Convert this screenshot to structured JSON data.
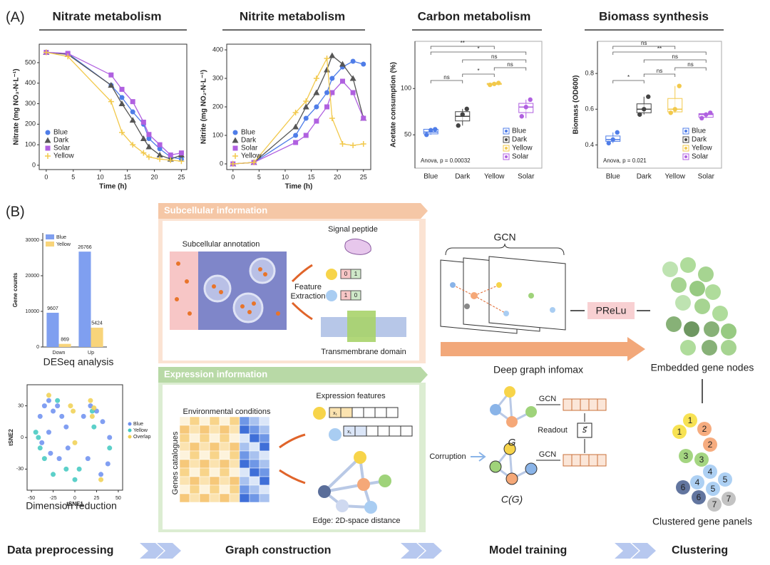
{
  "chart_data": [
    {
      "type": "line",
      "title": "Nitrate metabolism",
      "xlabel": "Time (h)",
      "ylabel": "Nitrate (mg NO₃-N·L⁻¹)",
      "x": [
        0,
        4,
        12,
        14,
        16,
        18,
        19,
        21,
        23,
        25
      ],
      "xlim": [
        -1.3,
        26
      ],
      "xticks": [
        0,
        5,
        10,
        15,
        20,
        25
      ],
      "ylim": [
        -21,
        590
      ],
      "yticks": [
        0,
        100,
        200,
        300,
        400,
        500
      ],
      "series": [
        {
          "name": "Blue",
          "color": "#4f7de8",
          "marker": "circle",
          "values": [
            550,
            545,
            390,
            330,
            260,
            200,
            130,
            80,
            40,
            30
          ]
        },
        {
          "name": "Dark",
          "color": "#555555",
          "marker": "triangle",
          "values": [
            550,
            540,
            390,
            300,
            220,
            130,
            90,
            50,
            30,
            50
          ]
        },
        {
          "name": "Solar",
          "color": "#b060e0",
          "marker": "square",
          "values": [
            550,
            545,
            440,
            370,
            310,
            210,
            150,
            100,
            50,
            60
          ]
        },
        {
          "name": "Yellow",
          "color": "#f2c94c",
          "marker": "cross",
          "values": [
            550,
            530,
            310,
            160,
            100,
            60,
            40,
            30,
            25,
            20
          ]
        }
      ]
    },
    {
      "type": "line",
      "title": "Nitrite metabolism",
      "xlabel": "Time (h)",
      "ylabel": "Nitrite (mg NO₂-N·L⁻¹)",
      "x": [
        0,
        4,
        12,
        14,
        16,
        18,
        19,
        21,
        23,
        25
      ],
      "xlim": [
        -1.2,
        26.4
      ],
      "xticks": [
        0,
        5,
        10,
        15,
        20,
        25
      ],
      "ylim": [
        -20,
        420
      ],
      "yticks": [
        0,
        100,
        200,
        300,
        400
      ],
      "series": [
        {
          "name": "Blue",
          "color": "#4f7de8",
          "marker": "circle",
          "values": [
            0,
            5,
            100,
            160,
            200,
            250,
            300,
            340,
            360,
            350
          ]
        },
        {
          "name": "Dark",
          "color": "#555555",
          "marker": "triangle",
          "values": [
            0,
            5,
            130,
            200,
            250,
            330,
            380,
            350,
            300,
            160
          ]
        },
        {
          "name": "Solar",
          "color": "#b060e0",
          "marker": "square",
          "values": [
            0,
            5,
            75,
            100,
            150,
            200,
            250,
            290,
            250,
            160
          ]
        },
        {
          "name": "Yellow",
          "color": "#f2c94c",
          "marker": "cross",
          "values": [
            0,
            5,
            180,
            220,
            300,
            370,
            160,
            70,
            65,
            70
          ]
        }
      ]
    },
    {
      "type": "box",
      "title": "Carbon metabolism",
      "ylabel": "Acetate consumption (%)",
      "categories": [
        "Blue",
        "Dark",
        "Yellow",
        "Solar"
      ],
      "colors": [
        "#4f7de8",
        "#444444",
        "#f2c94c",
        "#b060e0"
      ],
      "ylim": [
        14,
        151
      ],
      "yticks": [
        50,
        100
      ],
      "boxes": [
        {
          "min": 50,
          "q1": 51,
          "median": 53,
          "q3": 56,
          "max": 57
        },
        {
          "min": 60,
          "q1": 65,
          "median": 70,
          "q3": 75,
          "max": 78
        },
        {
          "min": 104,
          "q1": 104.5,
          "median": 105,
          "q3": 105.5,
          "max": 106
        },
        {
          "min": 68,
          "q1": 74,
          "median": 80,
          "q3": 84,
          "max": 88
        }
      ],
      "points": [
        [
          50,
          55,
          56
        ],
        [
          60,
          72,
          78
        ],
        [
          104,
          105,
          106
        ],
        [
          70,
          80,
          88
        ]
      ],
      "annotation": "Anova, p = 0.00032",
      "significance": [
        "**",
        "*",
        "ns",
        "ns",
        "*",
        "ns"
      ]
    },
    {
      "type": "box",
      "title": "Biomass synthesis",
      "ylabel": "Biomass (OD600)",
      "categories": [
        "Blue",
        "Dark",
        "Yellow",
        "Solar"
      ],
      "colors": [
        "#4f7de8",
        "#444444",
        "#f2c94c",
        "#b060e0"
      ],
      "ylim": [
        0.27,
        0.98
      ],
      "yticks": [
        0.4,
        0.6,
        0.8
      ],
      "boxes": [
        {
          "min": 0.41,
          "q1": 0.42,
          "median": 0.43,
          "q3": 0.45,
          "max": 0.47
        },
        {
          "min": 0.57,
          "q1": 0.58,
          "median": 0.6,
          "q3": 0.63,
          "max": 0.67
        },
        {
          "min": 0.58,
          "q1": 0.585,
          "median": 0.6,
          "q3": 0.66,
          "max": 0.73
        },
        {
          "min": 0.55,
          "q1": 0.555,
          "median": 0.57,
          "q3": 0.575,
          "max": 0.58
        }
      ],
      "points": [
        [
          0.41,
          0.43,
          0.47
        ],
        [
          0.57,
          0.6,
          0.67
        ],
        [
          0.58,
          0.6,
          0.73
        ],
        [
          0.55,
          0.57,
          0.58
        ]
      ],
      "annotation": "Anova, p = 0.021",
      "significance": [
        "ns",
        "**",
        "ns",
        "ns",
        "ns",
        "*"
      ]
    },
    {
      "type": "bar",
      "title": "DESeq analysis",
      "ylabel": "Gene counts",
      "categories": [
        "Down",
        "Up"
      ],
      "ylim": [
        0,
        32000
      ],
      "yticks": [
        0,
        10000,
        20000,
        30000
      ],
      "series": [
        {
          "name": "Blue",
          "color": "#7f9ff0",
          "values": [
            9607,
            26766
          ]
        },
        {
          "name": "Yellow",
          "color": "#f8d47a",
          "values": [
            869,
            5424
          ]
        }
      ]
    },
    {
      "type": "scatter",
      "title": "Dimension reduction",
      "xlabel": "tSNE1",
      "ylabel": "tSNE2",
      "xlim": [
        -55,
        55
      ],
      "xticks": [
        -50,
        -25,
        0,
        25,
        50
      ],
      "ylim": [
        -50,
        50
      ],
      "yticks": [
        -30,
        0,
        30
      ],
      "series": [
        {
          "name": "Blue",
          "color": "#6b8ef0",
          "x": [
            -40,
            -35,
            -30,
            -25,
            -20,
            -15,
            -10,
            -38,
            -28,
            -18,
            -8,
            -30,
            10,
            18,
            25,
            32,
            40,
            15,
            30,
            38
          ],
          "y": [
            20,
            30,
            35,
            25,
            30,
            20,
            10,
            -5,
            -15,
            -20,
            -10,
            5,
            20,
            30,
            25,
            15,
            0,
            -20,
            -35,
            -25
          ]
        },
        {
          "name": "Yellow",
          "color": "#40c8c0",
          "x": [
            -45,
            -42,
            -40,
            -35,
            -20,
            -10,
            0,
            20,
            22,
            40,
            5,
            -25
          ],
          "y": [
            5,
            0,
            -10,
            -20,
            35,
            -30,
            -40,
            25,
            10,
            -10,
            -30,
            -35
          ]
        },
        {
          "name": "Overlap",
          "color": "#f0d050",
          "x": [
            -5,
            -2,
            18,
            20,
            22,
            -30,
            30,
            0
          ],
          "y": [
            30,
            25,
            35,
            20,
            28,
            40,
            -40,
            -5
          ]
        }
      ]
    }
  ],
  "panels": {
    "a": "(A)",
    "b": "(B)"
  },
  "subcellular": {
    "header": "Subcellular information",
    "annotation": "Subcellular annotation",
    "signal_peptide": "Signal peptide",
    "feature_extraction": [
      "Feature",
      "Extraction"
    ],
    "bits": [
      "0",
      "1",
      "1",
      "0"
    ],
    "transmembrane": "Transmembrane domain"
  },
  "expression": {
    "header": "Expression information",
    "conditions": "Environmental conditions",
    "genes": "Genes catalogues",
    "features": "Expression features",
    "feature_cells": [
      "x₁",
      "x₁"
    ],
    "edge": "Edge: 2D-space distance"
  },
  "model": {
    "gcn": "GCN",
    "prelu": "PReLu",
    "dgi": "Deep graph infomax",
    "graph": "G",
    "corrupted": "C(G)",
    "gcn_top": "GCN",
    "gcn_bottom": "GCN",
    "readout": "Readout",
    "corruption": "Corruption",
    "summary": "s⃗"
  },
  "clustering": {
    "embedded": "Embedded gene nodes",
    "clustered": "Clustered gene panels",
    "cluster_labels": [
      "1",
      "1",
      "2",
      "2",
      "3",
      "3",
      "4",
      "4",
      "5",
      "5",
      "6",
      "6",
      "7",
      "7"
    ]
  },
  "steps": [
    "Data preprocessing",
    "Graph construction",
    "Model training",
    "Clustering"
  ]
}
